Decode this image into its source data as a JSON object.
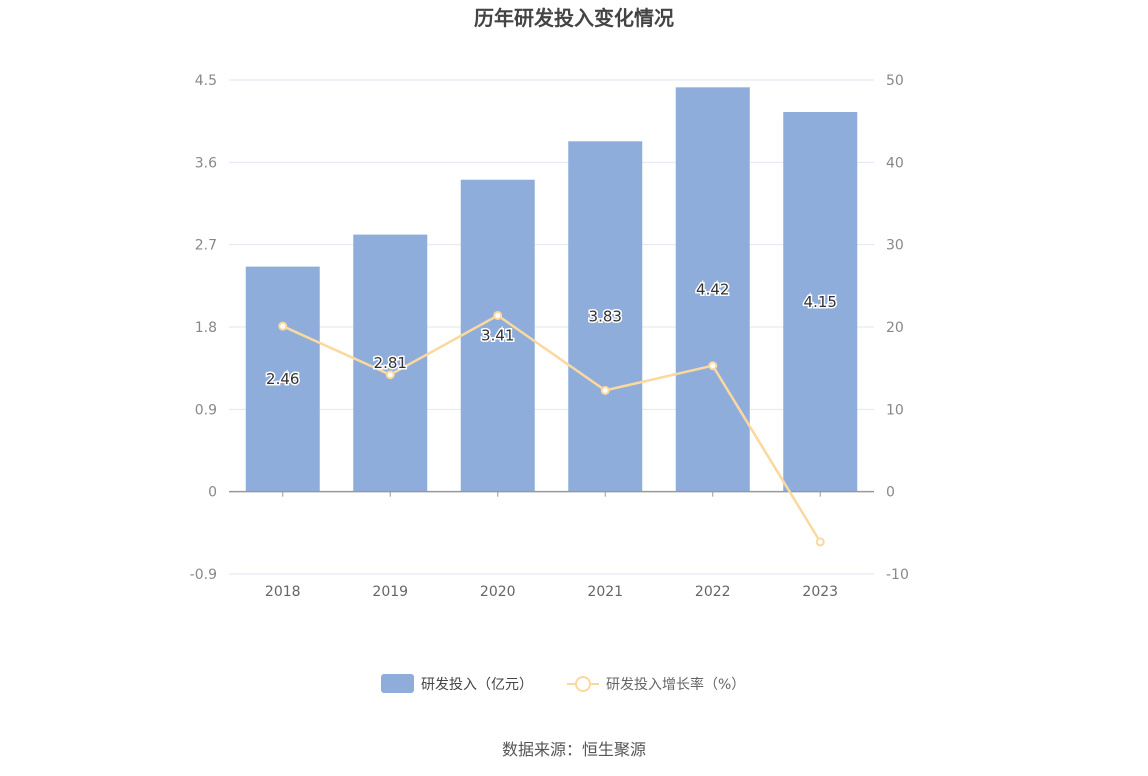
{
  "chart_data": {
    "type": "bar",
    "title": "历年研发投入变化情况",
    "categories": [
      "2018",
      "2019",
      "2020",
      "2021",
      "2022",
      "2023"
    ],
    "series": [
      {
        "name": "研发投入（亿元）",
        "type": "bar",
        "axis": "left",
        "color": "#8eadda",
        "values": [
          2.46,
          2.81,
          3.41,
          3.83,
          4.42,
          4.15
        ],
        "labels": [
          "2.46",
          "2.81",
          "3.41",
          "3.83",
          "4.42",
          "4.15"
        ]
      },
      {
        "name": "研发投入增长率（%）",
        "type": "line",
        "axis": "right",
        "color": "#fbd89e",
        "values": [
          20.1,
          14.2,
          21.4,
          12.3,
          15.3,
          -6.1
        ]
      }
    ],
    "y_left": {
      "min": -0.9,
      "max": 4.5,
      "ticks": [
        "-0.9",
        "0",
        "0.9",
        "1.8",
        "2.7",
        "3.6",
        "4.5"
      ]
    },
    "y_right": {
      "min": -10,
      "max": 50,
      "ticks": [
        "-10",
        "0",
        "10",
        "20",
        "30",
        "40",
        "50"
      ]
    },
    "grid": true,
    "legend_position": "bottom-center"
  },
  "footer": {
    "source": "数据来源：恒生聚源"
  }
}
